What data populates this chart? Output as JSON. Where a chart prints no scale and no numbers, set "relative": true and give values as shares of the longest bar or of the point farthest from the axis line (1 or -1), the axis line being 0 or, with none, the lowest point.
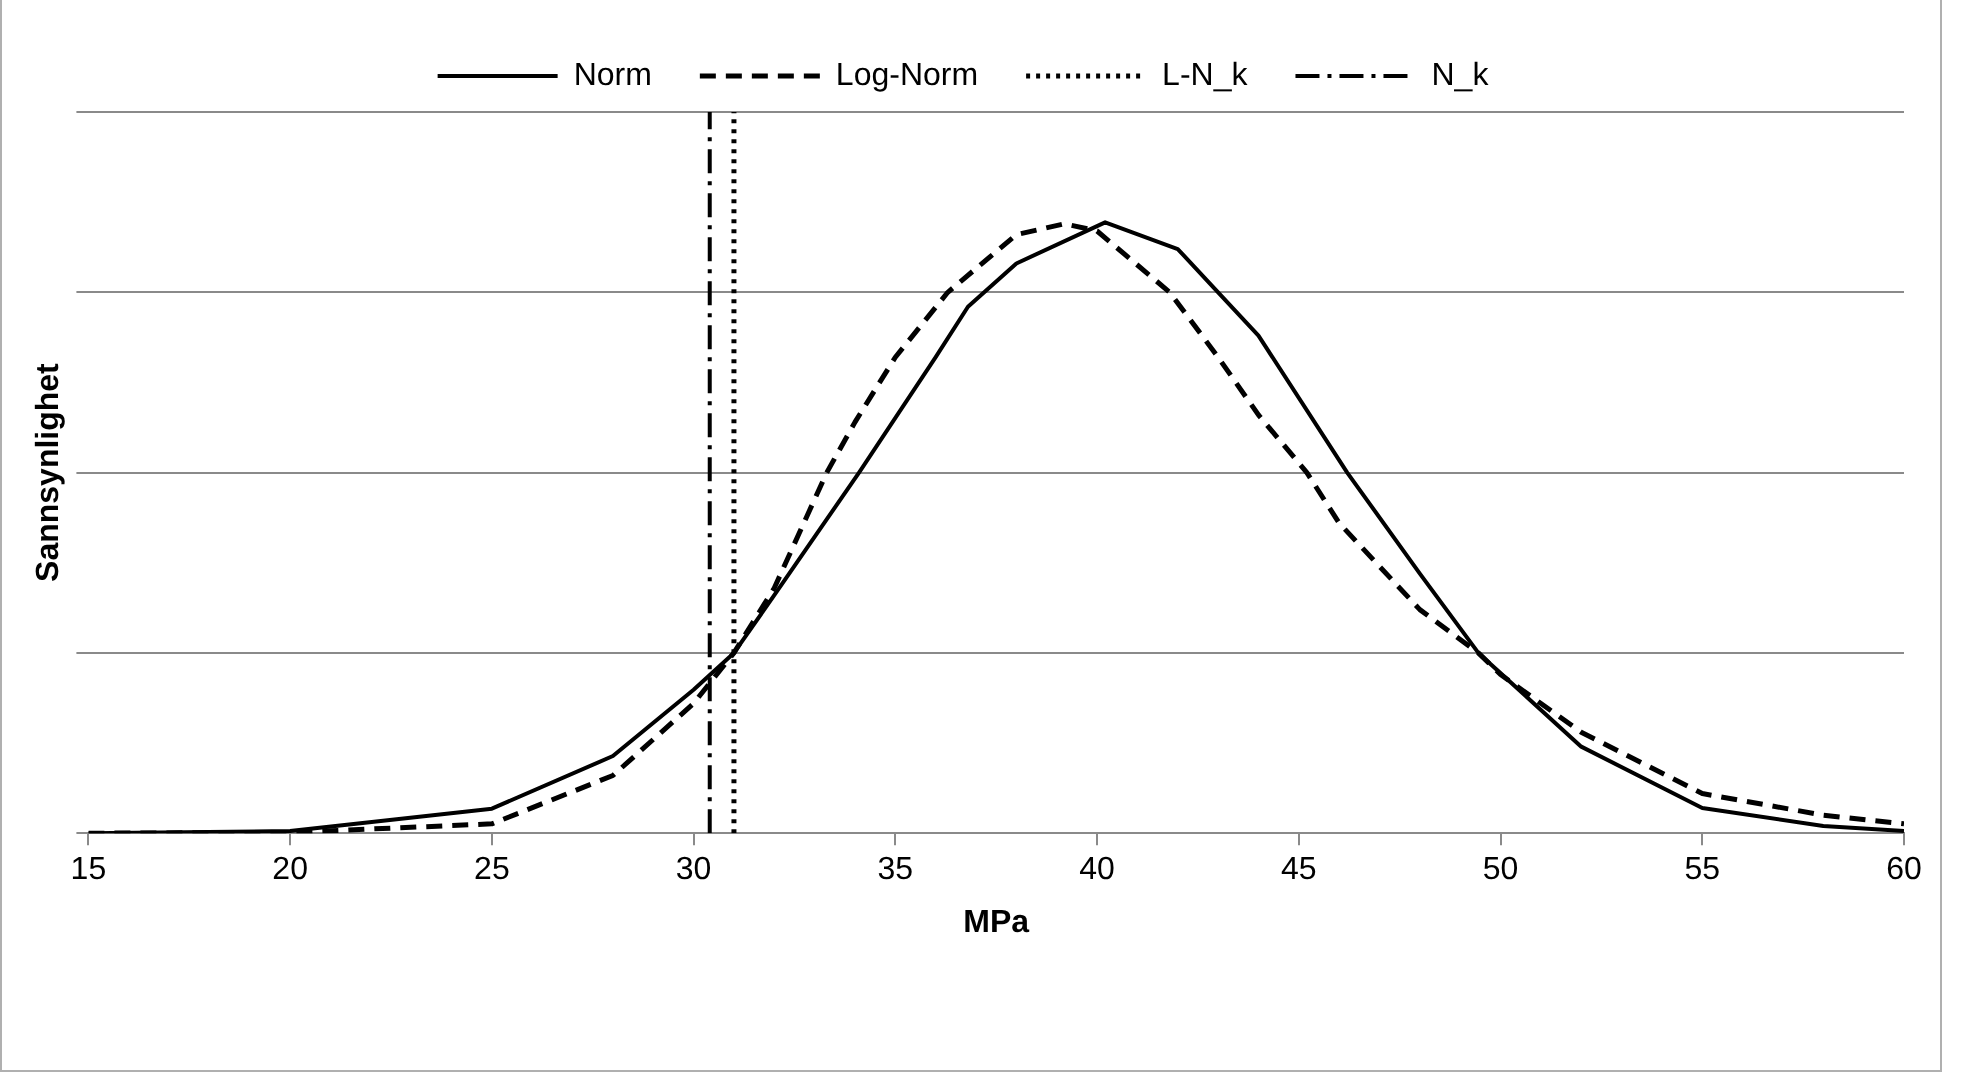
{
  "chart_data": {
    "type": "line",
    "xlabel": "MPa",
    "ylabel": "Sannsynlighet",
    "relative": true,
    "grid": "y",
    "legend": "top",
    "marker": "none",
    "xlim": [
      15,
      60
    ],
    "xticks": [
      15,
      20,
      25,
      30,
      35,
      40,
      45,
      50,
      55,
      60
    ],
    "series": [
      {
        "name": "Norm",
        "color": "#000000",
        "line_style": "solid",
        "x": [
          15,
          20,
          25,
          28,
          30,
          31,
          32,
          34.1,
          36,
          36.8,
          38,
          40.2,
          42,
          43,
          44,
          46.2,
          48,
          49.45,
          52,
          55,
          58,
          60
        ],
        "values": [
          0,
          0.003,
          0.034,
          0.107,
          0.199,
          0.25,
          0.33,
          0.5,
          0.66,
          0.73,
          0.79,
          0.847,
          0.81,
          0.75,
          0.69,
          0.5,
          0.36,
          0.25,
          0.12,
          0.035,
          0.01,
          0.003
        ]
      },
      {
        "name": "Log-Norm",
        "color": "#000000",
        "line_style": "dashed",
        "x": [
          15,
          20,
          25,
          28,
          30,
          31,
          32,
          33.3,
          34,
          35,
          36.3,
          38,
          39.2,
          40,
          41.8,
          43,
          44,
          45.2,
          46,
          48,
          49.45,
          50,
          52,
          55,
          58,
          60
        ],
        "values": [
          0,
          0.001,
          0.013,
          0.08,
          0.18,
          0.25,
          0.34,
          0.5,
          0.57,
          0.66,
          0.75,
          0.83,
          0.845,
          0.835,
          0.75,
          0.66,
          0.58,
          0.5,
          0.43,
          0.31,
          0.25,
          0.22,
          0.14,
          0.055,
          0.025,
          0.013
        ]
      },
      {
        "name": "L-N_k",
        "color": "#000000",
        "line_style": "dotted",
        "x": [
          31,
          31
        ],
        "values": [
          0,
          1
        ]
      },
      {
        "name": "N_k",
        "color": "#000000",
        "line_style": "dashdot",
        "x": [
          30.4,
          30.4
        ],
        "values": [
          0,
          1
        ]
      }
    ]
  }
}
